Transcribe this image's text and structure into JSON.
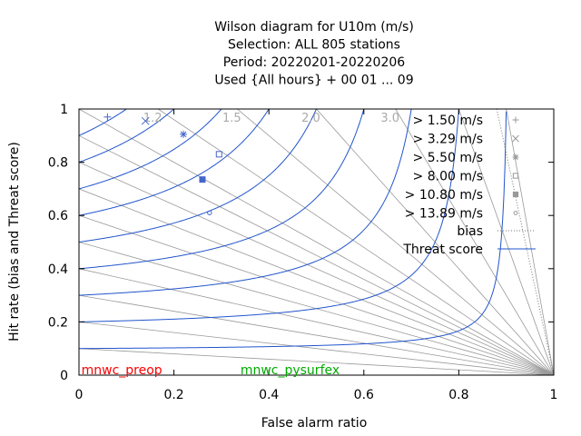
{
  "chart_data": {
    "type": "scatter",
    "title_lines": [
      "Wilson diagram  for U10m (m/s)",
      "Selection: ALL    805 stations",
      "Period: 20220201-20220206",
      "Used {All hours} + 00 01 ... 09"
    ],
    "xlabel": "False alarm ratio",
    "ylabel": "Hit rate (bias and Threat score)",
    "xlim": [
      0,
      1
    ],
    "ylim": [
      0,
      1
    ],
    "xticks": [
      "0",
      "0.2",
      "0.4",
      "0.6",
      "0.8",
      "1"
    ],
    "yticks": [
      "0",
      "0.2",
      "0.4",
      "0.6",
      "0.8",
      "1"
    ],
    "bias_labels": [
      "1.2",
      "1.5",
      "2.0",
      "3.0"
    ],
    "legend_position": "top-right",
    "series": [
      {
        "name": "> 1.50 m/s",
        "marker": "plus",
        "x": [
          0.06
        ],
        "y": [
          0.97
        ]
      },
      {
        "name": "> 3.29 m/s",
        "marker": "cross",
        "x": [
          0.14
        ],
        "y": [
          0.955
        ]
      },
      {
        "name": "> 5.50 m/s",
        "marker": "star",
        "x": [
          0.22
        ],
        "y": [
          0.905
        ]
      },
      {
        "name": "> 8.00 m/s",
        "marker": "open-square",
        "x": [
          0.295
        ],
        "y": [
          0.83
        ]
      },
      {
        "name": "> 10.80 m/s",
        "marker": "filled-square",
        "x": [
          0.26
        ],
        "y": [
          0.735
        ]
      },
      {
        "name": "> 13.89 m/s",
        "marker": "open-circle",
        "x": [
          0.275
        ],
        "y": [
          0.61
        ]
      }
    ],
    "line_legend": [
      {
        "name": "bias",
        "style": "dotted"
      },
      {
        "name": "Threat score",
        "style": "solid-blue"
      }
    ],
    "bias_lines": [
      0.1,
      0.2,
      0.3,
      0.4,
      0.5,
      0.6,
      0.7,
      0.8,
      0.9,
      1.0,
      1.2,
      1.5,
      2.0,
      3.0,
      5.0,
      10.0
    ],
    "threat_score_levels": [
      0.1,
      0.2,
      0.3,
      0.4,
      0.5,
      0.6,
      0.7,
      0.8,
      0.9
    ],
    "experiments": [
      {
        "name": "mnwc_preop",
        "color": "#ff0000"
      },
      {
        "name": "mnwc_pysurfex",
        "color": "#00aa00"
      }
    ],
    "colors": {
      "axis": "#000000",
      "curves": "#2255cc",
      "points": "#4466cc",
      "bias_lines": "#999999",
      "bias_labels": "#aaaaaa"
    }
  }
}
